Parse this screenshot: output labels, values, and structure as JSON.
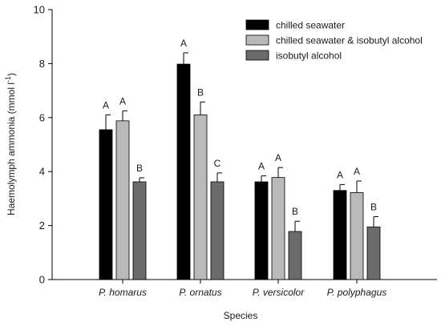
{
  "chart_data": {
    "type": "bar",
    "xlabel": "Species",
    "ylabel": "Haemolymph ammonia (mmol l",
    "ylabel_sup": "-1",
    "ylabel_close": ")",
    "ylim": [
      0,
      10
    ],
    "yticks": [
      0,
      2,
      4,
      6,
      8,
      10
    ],
    "grid": false,
    "legend_position": "top-right",
    "categories": [
      "P. homarus",
      "P. ornatus",
      "P. versicolor",
      "P. polyphagus"
    ],
    "series": [
      {
        "name": "chilled seawater",
        "color": "#000000",
        "values": [
          5.55,
          7.98,
          3.62,
          3.3
        ],
        "errors": [
          0.55,
          0.42,
          0.22,
          0.22
        ],
        "labels": [
          "A",
          "A",
          "A",
          "A"
        ]
      },
      {
        "name": "chilled seawater & isobutyl alcohol",
        "color": "#b9b9b9",
        "values": [
          5.88,
          6.1,
          3.78,
          3.22
        ],
        "errors": [
          0.37,
          0.48,
          0.37,
          0.43
        ],
        "labels": [
          "A",
          "B",
          "A",
          "A"
        ]
      },
      {
        "name": "isobutyl alcohol",
        "color": "#6b6b6b",
        "values": [
          3.62,
          3.62,
          1.78,
          1.95
        ],
        "errors": [
          0.15,
          0.33,
          0.38,
          0.38
        ],
        "labels": [
          "B",
          "C",
          "B",
          "B"
        ]
      }
    ]
  }
}
